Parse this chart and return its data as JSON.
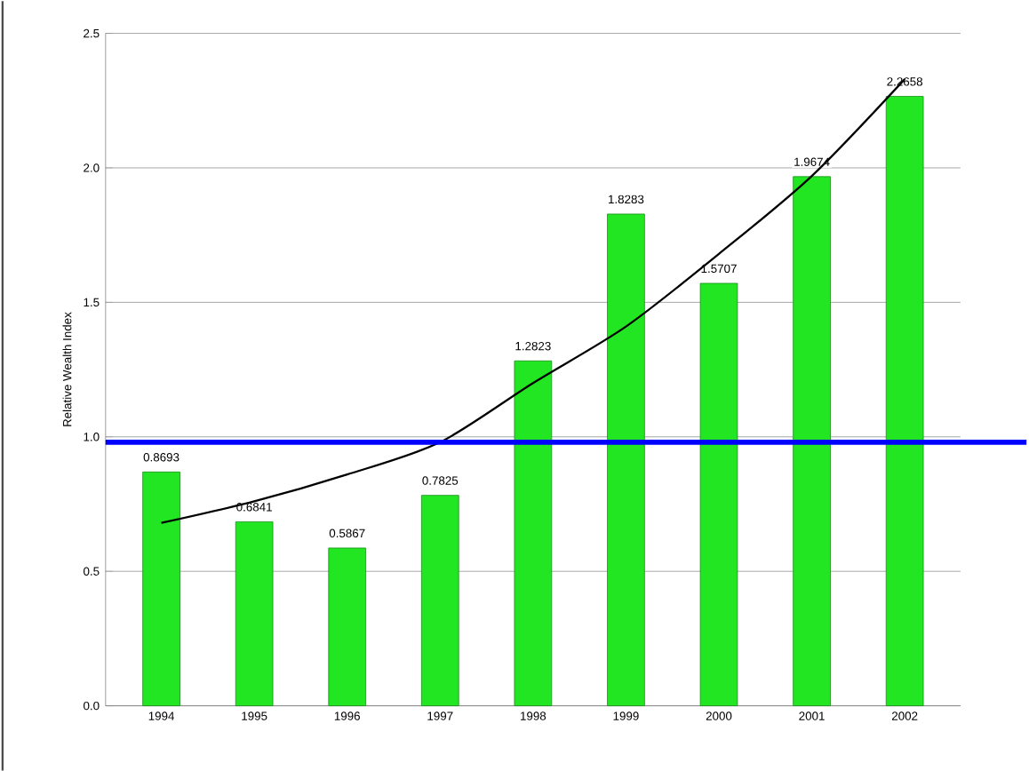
{
  "chart_data": {
    "type": "bar",
    "ylabel": "Relative Wealth Index",
    "categories": [
      "1994",
      "1995",
      "1996",
      "1997",
      "1998",
      "1999",
      "2000",
      "2001",
      "2002"
    ],
    "series": [
      {
        "color": "#22e622",
        "data_labels": true,
        "values": [
          0.8693,
          0.6841,
          0.5867,
          0.7825,
          1.2823,
          1.8283,
          1.5707,
          1.9674,
          2.2658
        ]
      },
      {
        "type": "line",
        "color": "#000000",
        "values": [
          0.68,
          0.76,
          0.86,
          0.98,
          1.2,
          1.41,
          1.68,
          1.97,
          2.33
        ]
      }
    ],
    "ylim": [
      0,
      2.5
    ],
    "yticks": [
      {
        "value": 0,
        "label": "0.0"
      },
      {
        "value": 0.5,
        "label": "0.5"
      },
      {
        "value": 1,
        "label": "1.0"
      },
      {
        "value": 1.5,
        "label": "1.5"
      },
      {
        "value": 2,
        "label": "2.0"
      },
      {
        "value": 2.5,
        "label": "2.5"
      }
    ],
    "grid": "y",
    "ref_lines": [
      {
        "axis": "y",
        "value": 0.98,
        "color": "#0000ff"
      }
    ]
  }
}
